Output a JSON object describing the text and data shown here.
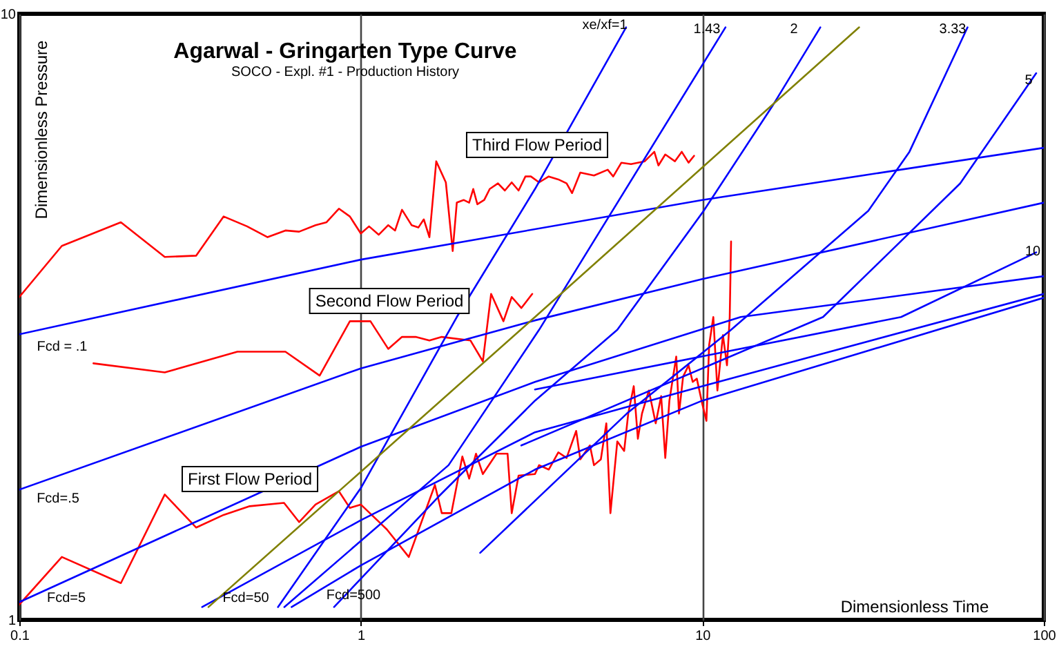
{
  "chart_data": {
    "type": "line",
    "title": "Agarwal - Gringarten Type Curve",
    "subtitle": "SOCO - Expl. #1 - Production History",
    "xlabel": "Dimensionless Time",
    "ylabel": "Dimensionless Pressure",
    "log": "xy",
    "xlim": [
      0.1,
      100
    ],
    "ylim": [
      1,
      10
    ],
    "xticks": [
      0.1,
      1,
      10,
      100
    ],
    "yticks": [
      1,
      10
    ],
    "grid": "x",
    "marker": "none",
    "line_style": "solid",
    "series": [
      {
        "color": "#ff0000",
        "x": [
          0.1,
          0.1332,
          0.1983,
          0.2666,
          0.3296,
          0.3966,
          0.4642,
          0.5333,
          0.6014,
          0.6596,
          0.7368,
          0.7937,
          0.8626,
          0.9288,
          1.0,
          1.057,
          1.128,
          1.203,
          1.26,
          1.32,
          1.408,
          1.474,
          1.529,
          1.588,
          1.663,
          1.774,
          1.858,
          1.91,
          2.0,
          2.076,
          2.134,
          2.194,
          2.298,
          2.385,
          2.521,
          2.641,
          2.766,
          2.897,
          3.034,
          3.148,
          3.327,
          3.55,
          3.787,
          4.004,
          4.155,
          4.392,
          4.817,
          5.284,
          5.483,
          5.795,
          6.183,
          6.782,
          7.235,
          7.438,
          7.79,
          8.311,
          8.704,
          9.115,
          9.459
        ],
        "values": [
          3.41,
          4.14,
          4.53,
          3.97,
          3.99,
          4.63,
          4.46,
          4.28,
          4.39,
          4.37,
          4.48,
          4.53,
          4.77,
          4.63,
          4.34,
          4.46,
          4.32,
          4.48,
          4.39,
          4.75,
          4.48,
          4.44,
          4.58,
          4.28,
          5.71,
          5.27,
          4.06,
          4.88,
          4.93,
          4.88,
          5.14,
          4.85,
          4.93,
          5.14,
          5.25,
          5.11,
          5.27,
          5.11,
          5.39,
          5.39,
          5.27,
          5.39,
          5.33,
          5.25,
          5.06,
          5.47,
          5.41,
          5.53,
          5.39,
          5.68,
          5.65,
          5.71,
          5.92,
          5.62,
          5.86,
          5.71,
          5.92,
          5.68,
          5.83
        ]
      },
      {
        "color": "#ff0000",
        "x": [
          0.1648,
          0.2666,
          0.4351,
          0.6014,
          0.7576,
          0.9288,
          1.067,
          1.203,
          1.32,
          1.447,
          1.588,
          1.726,
          2.095,
          2.277,
          2.407,
          2.616,
          2.766,
          2.951,
          3.177
        ],
        "values": [
          2.65,
          2.56,
          2.77,
          2.77,
          2.53,
          3.11,
          3.11,
          2.8,
          2.93,
          2.93,
          2.89,
          2.93,
          2.89,
          2.67,
          3.45,
          3.11,
          3.41,
          3.27,
          3.45
        ]
      },
      {
        "color": "#ff0000",
        "x": [
          0.1,
          0.1332,
          0.1983,
          0.2666,
          0.3296,
          0.3966,
          0.4728,
          0.5958,
          0.6596,
          0.7368,
          0.8626,
          0.9288,
          1.0,
          1.192,
          1.382,
          1.648,
          1.726,
          1.841,
          1.983,
          2.076,
          2.174,
          2.277,
          2.497,
          2.69,
          2.766,
          2.897,
          3.236,
          3.327,
          3.55,
          3.787,
          4.004,
          4.272,
          4.392,
          4.686,
          4.817,
          5.045,
          5.235,
          5.382,
          5.637,
          5.903,
          6.069,
          6.298,
          6.476,
          6.658,
          6.973,
          7.303,
          7.577,
          7.79,
          8.009,
          8.388,
          8.544,
          8.785,
          9.115,
          9.372,
          9.636,
          10.0,
          10.28,
          10.47,
          10.77,
          11.07,
          11.49,
          11.81,
          12.03,
          12.14
        ],
        "values": [
          1.06,
          1.27,
          1.15,
          1.61,
          1.42,
          1.49,
          1.54,
          1.56,
          1.45,
          1.55,
          1.63,
          1.53,
          1.55,
          1.41,
          1.27,
          1.67,
          1.5,
          1.5,
          1.86,
          1.71,
          1.88,
          1.74,
          1.88,
          1.88,
          1.5,
          1.73,
          1.74,
          1.8,
          1.77,
          1.89,
          1.85,
          2.05,
          1.84,
          1.94,
          1.8,
          1.84,
          2.11,
          1.5,
          1.97,
          1.9,
          2.19,
          2.43,
          1.99,
          2.19,
          2.39,
          2.11,
          2.34,
          1.85,
          2.3,
          2.72,
          2.19,
          2.52,
          2.63,
          2.47,
          2.5,
          2.27,
          2.13,
          2.84,
          3.16,
          2.39,
          2.95,
          2.63,
          3.16,
          4.21
        ]
      },
      {
        "color": "#0000ff",
        "x": [
          0.1,
          1,
          10,
          100
        ],
        "values": [
          2.96,
          3.93,
          4.93,
          6.01
        ]
      },
      {
        "color": "#0000ff",
        "x": [
          0.1,
          1,
          3.236,
          10,
          100
        ],
        "values": [
          1.64,
          2.6,
          3.12,
          3.65,
          4.88
        ]
      },
      {
        "color": "#0000ff",
        "x": [
          0.1,
          1,
          3.236,
          12.95,
          100
        ],
        "values": [
          1.07,
          1.93,
          2.47,
          3.16,
          3.69
        ]
      },
      {
        "color": "#0000ff",
        "x": [
          0.343,
          1,
          3.236,
          10,
          100
        ],
        "values": [
          1.05,
          1.46,
          2.04,
          2.43,
          3.45
        ]
      },
      {
        "color": "#0000ff",
        "x": [
          0.627,
          1,
          3.236,
          10,
          100
        ],
        "values": [
          1.05,
          1.23,
          1.77,
          2.3,
          3.4
        ]
      },
      {
        "color": "#0000ff",
        "x": [
          0.572,
          1,
          1.91,
          3.236,
          5.98
        ],
        "values": [
          1.05,
          1.65,
          3.16,
          5.14,
          9.5
        ]
      },
      {
        "color": "#0000ff",
        "x": [
          0.597,
          1.807,
          3.327,
          11.69
        ],
        "values": [
          1.05,
          1.8,
          3.01,
          9.5
        ]
      },
      {
        "color": "#0000ff",
        "x": [
          0.835,
          1.694,
          3.236,
          5.637,
          10.09,
          16.03,
          22.16
        ],
        "values": [
          1.05,
          1.6,
          2.3,
          3.01,
          4.73,
          7.04,
          9.5
        ]
      },
      {
        "color": "#0000ff",
        "x": [
          2.236,
          6.012,
          12.14,
          30.61,
          40.41,
          59.8
        ],
        "values": [
          1.29,
          2.19,
          3.01,
          4.73,
          5.92,
          9.5
        ]
      },
      {
        "color": "#0000ff",
        "x": [
          2.951,
          22.57,
          56.89,
          95
        ],
        "values": [
          1.94,
          3.16,
          5.25,
          7.98
        ]
      },
      {
        "color": "#0000ff",
        "x": [
          3.236,
          38.21,
          95
        ],
        "values": [
          2.4,
          3.16,
          4.04
        ]
      },
      {
        "color": "#808000",
        "x": [
          0.358,
          3.236,
          28.79
        ],
        "values": [
          1.05,
          3.16,
          9.5
        ]
      }
    ],
    "annotations": [
      "Third Flow Period",
      "Second Flow Period",
      "First Flow Period",
      "xe/xf=1",
      "1.43",
      "2",
      "3.33",
      "5",
      "10",
      "Fcd = .1",
      "Fcd=.5",
      "Fcd=5",
      "Fcd=50",
      "Fcd=500"
    ]
  }
}
